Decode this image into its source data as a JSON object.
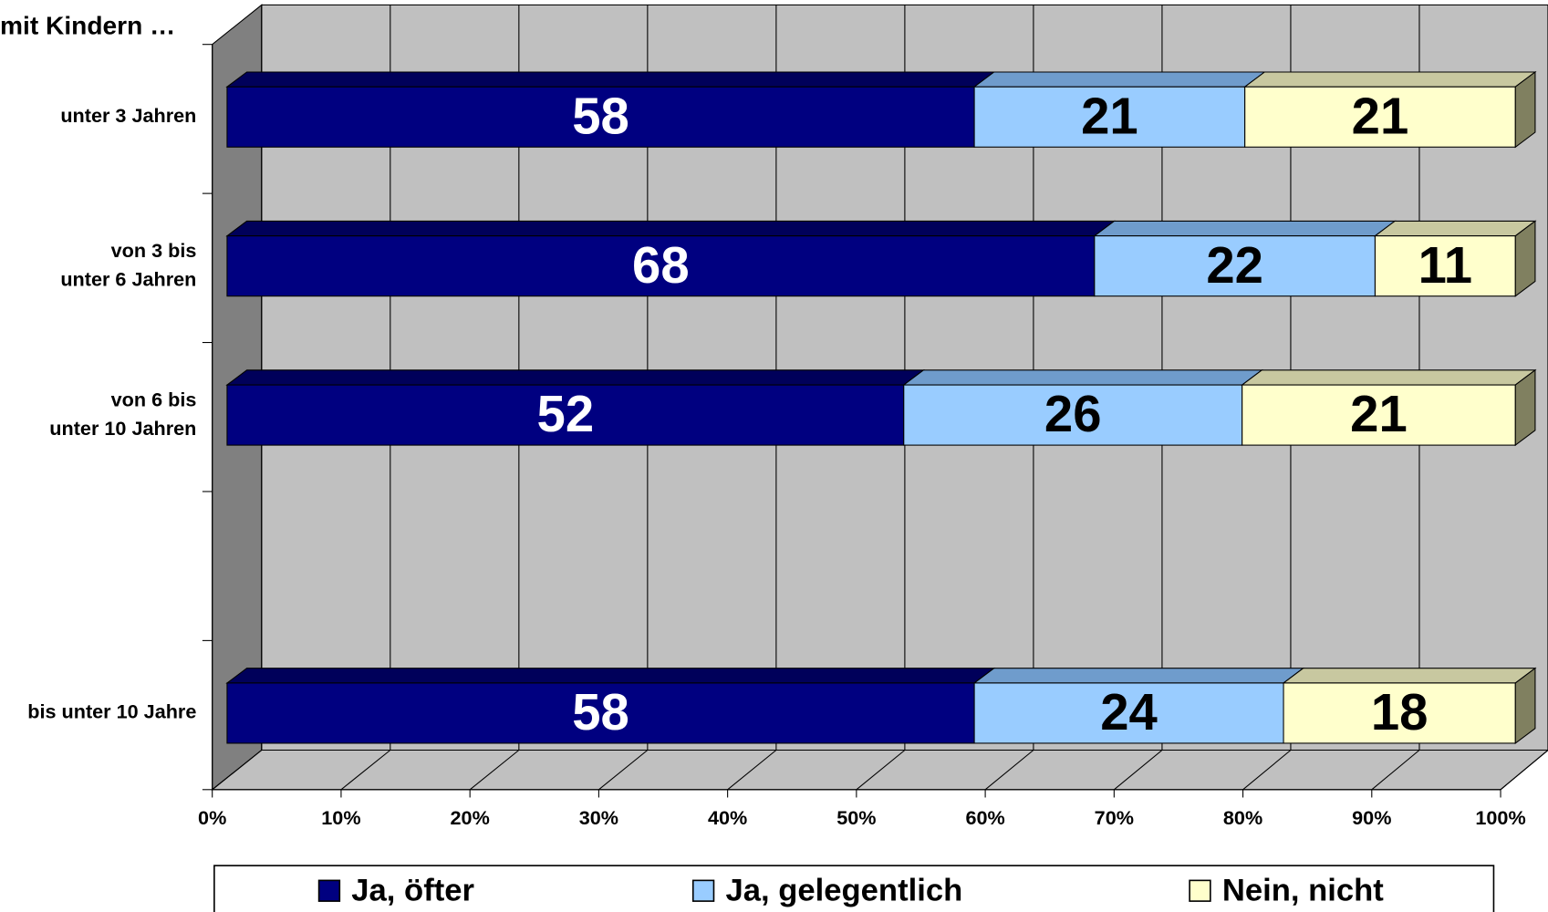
{
  "chart_data": {
    "type": "bar3d_stacked_horizontal",
    "title": "mit Kindern …",
    "categories": [
      "unter 3 Jahren",
      "von 3 bis\nunter 6 Jahren",
      "von 6 bis\nunter 10 Jahren",
      null,
      "bis unter 10 Jahre"
    ],
    "series": [
      {
        "name": "Ja, öfter",
        "color": "#000080",
        "top": "#00005a",
        "side": "#00004a",
        "label_color": "#ffffff",
        "values": [
          58,
          68,
          52,
          null,
          58
        ]
      },
      {
        "name": "Ja, gelegentlich",
        "color": "#99ccff",
        "top": "#6f9ccc",
        "side": "#5f88b3",
        "label_color": "#000000",
        "values": [
          21,
          22,
          26,
          null,
          24
        ]
      },
      {
        "name": "Nein, nicht",
        "color": "#ffffcc",
        "top": "#c8c8a0",
        "side": "#808060",
        "label_color": "#000000",
        "values": [
          21,
          11,
          21,
          null,
          18
        ]
      }
    ],
    "xlim": [
      0,
      100
    ],
    "xticks": [
      {
        "value": 0,
        "label": "0%"
      },
      {
        "value": 10,
        "label": "10%"
      },
      {
        "value": 20,
        "label": "20%"
      },
      {
        "value": 30,
        "label": "30%"
      },
      {
        "value": 40,
        "label": "40%"
      },
      {
        "value": 50,
        "label": "50%"
      },
      {
        "value": 60,
        "label": "60%"
      },
      {
        "value": 70,
        "label": "70%"
      },
      {
        "value": 80,
        "label": "80%"
      },
      {
        "value": 90,
        "label": "90%"
      },
      {
        "value": 100,
        "label": "100%"
      }
    ],
    "grid": true,
    "legend": "bottom"
  }
}
